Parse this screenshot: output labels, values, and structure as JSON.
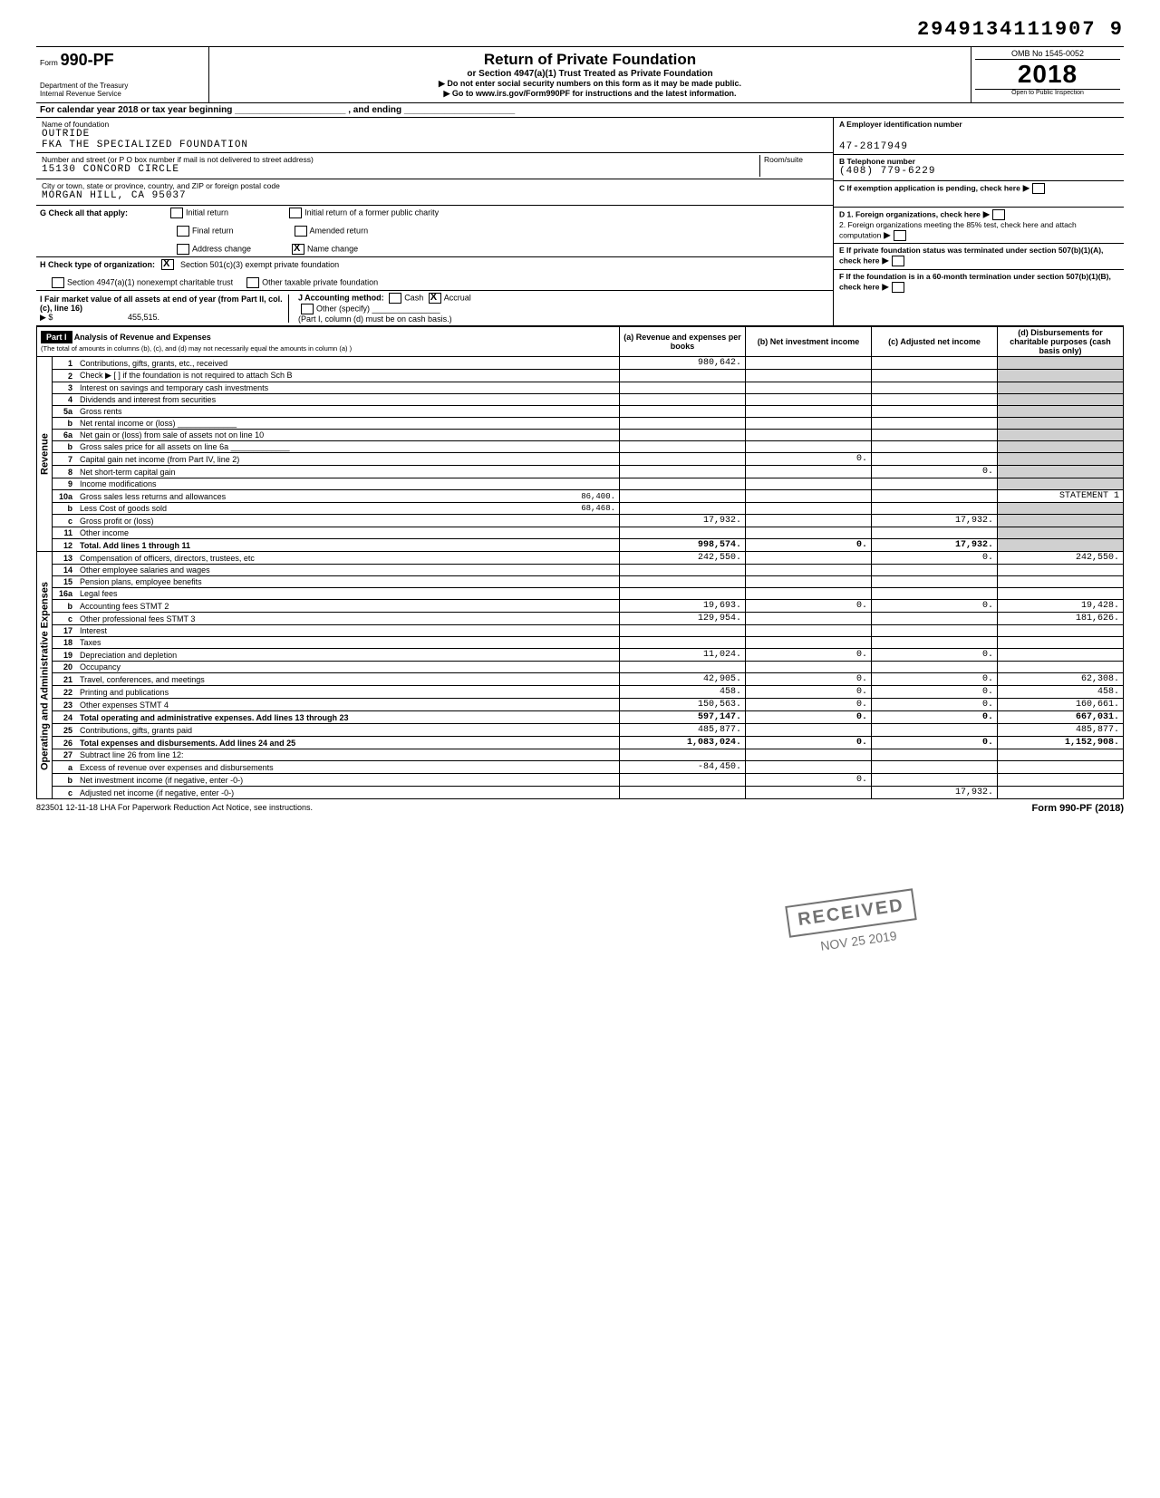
{
  "top_code": "2949134111907 9",
  "form": {
    "number_prefix": "Form",
    "number": "990-PF",
    "dept_line1": "Department of the Treasury",
    "dept_line2": "Internal Revenue Service",
    "title": "Return of Private Foundation",
    "subtitle1": "or Section 4947(a)(1) Trust Treated as Private Foundation",
    "subtitle2_a": "▶ Do not enter social security numbers on this form as it may be made public.",
    "subtitle2_b": "▶ Go to www.irs.gov/Form990PF for instructions and the latest information.",
    "omb": "OMB No 1545-0052",
    "year": "2018",
    "inspection": "Open to Public Inspection"
  },
  "period_line": "For calendar year 2018 or tax year beginning ______________________ , and ending ______________________",
  "foundation": {
    "name_label": "Name of foundation",
    "name_line1": "OUTRIDE",
    "name_line2": "FKA THE SPECIALIZED FOUNDATION",
    "addr_label": "Number and street (or P O box number if mail is not delivered to street address)",
    "room_label": "Room/suite",
    "address": "15130 CONCORD CIRCLE",
    "city_label": "City or town, state or province, country, and ZIP or foreign postal code",
    "city": "MORGAN HILL, CA  95037"
  },
  "right_block": {
    "a_label": "A Employer identification number",
    "ein": "47-2817949",
    "b_label": "B  Telephone number",
    "phone": "(408) 779-6229",
    "c_label": "C  If exemption application is pending, check here",
    "d1_label": "D  1. Foreign organizations, check here",
    "d2_label": "2. Foreign organizations meeting the 85% test, check here and attach computation",
    "e_label": "E  If private foundation status was terminated under section 507(b)(1)(A), check here",
    "f_label": "F  If the foundation is in a 60-month termination under section 507(b)(1)(B), check here"
  },
  "g_row": {
    "label": "G  Check all that apply:",
    "opts": [
      "Initial return",
      "Final return",
      "Address change",
      "Initial return of a former public charity",
      "Amended return",
      "Name change"
    ],
    "name_change_checked": true
  },
  "h_row": {
    "label": "H  Check type of organization:",
    "opt1": "Section 501(c)(3) exempt private foundation",
    "opt1_checked": true,
    "opt2": "Section 4947(a)(1) nonexempt charitable trust",
    "opt3": "Other taxable private foundation"
  },
  "i_row": {
    "label": "I  Fair market value of all assets at end of year (from Part II, col. (c), line 16)",
    "arrow": "▶ $",
    "value": "455,515.",
    "j_label": "J  Accounting method:",
    "cash": "Cash",
    "accrual": "Accrual",
    "accrual_checked": true,
    "other": "Other (specify) _______________",
    "note": "(Part I, column (d) must be on cash basis.)"
  },
  "part1_header": {
    "part": "Part I",
    "title": "Analysis of Revenue and Expenses",
    "note": "(The total of amounts in columns (b), (c), and (d) may not necessarily equal the amounts in column (a) )",
    "col_a": "(a) Revenue and expenses per books",
    "col_b": "(b) Net investment income",
    "col_c": "(c) Adjusted net income",
    "col_d": "(d) Disbursements for charitable purposes (cash basis only)"
  },
  "side_labels": {
    "revenue": "Revenue",
    "expenses": "Operating and Administrative Expenses"
  },
  "rows": [
    {
      "n": "1",
      "d": "Contributions, gifts, grants, etc., received",
      "a": "980,642."
    },
    {
      "n": "2",
      "d": "Check ▶ [ ] if the foundation is not required to attach Sch B"
    },
    {
      "n": "3",
      "d": "Interest on savings and temporary cash investments"
    },
    {
      "n": "4",
      "d": "Dividends and interest from securities"
    },
    {
      "n": "5a",
      "d": "Gross rents"
    },
    {
      "n": "b",
      "d": "Net rental income or (loss) _____________"
    },
    {
      "n": "6a",
      "d": "Net gain or (loss) from sale of assets not on line 10"
    },
    {
      "n": "b",
      "d": "Gross sales price for all assets on line 6a _____________"
    },
    {
      "n": "7",
      "d": "Capital gain net income (from Part IV, line 2)",
      "b": "0."
    },
    {
      "n": "8",
      "d": "Net short-term capital gain",
      "c": "0."
    },
    {
      "n": "9",
      "d": "Income modifications"
    },
    {
      "n": "10a",
      "d": "Gross sales less returns and allowances",
      "extra": "86,400.",
      "dcol": "STATEMENT 1"
    },
    {
      "n": "b",
      "d": "Less Cost of goods sold",
      "extra": "68,468."
    },
    {
      "n": "c",
      "d": "Gross profit or (loss)",
      "a": "17,932.",
      "c": "17,932."
    },
    {
      "n": "11",
      "d": "Other income"
    },
    {
      "n": "12",
      "d": "Total. Add lines 1 through 11",
      "a": "998,574.",
      "b": "0.",
      "c": "17,932.",
      "total": true
    },
    {
      "n": "13",
      "d": "Compensation of officers, directors, trustees, etc",
      "a": "242,550.",
      "c": "0.",
      "dcol": "242,550."
    },
    {
      "n": "14",
      "d": "Other employee salaries and wages"
    },
    {
      "n": "15",
      "d": "Pension plans, employee benefits"
    },
    {
      "n": "16a",
      "d": "Legal fees"
    },
    {
      "n": "b",
      "d": "Accounting fees                    STMT 2",
      "a": "19,693.",
      "b": "0.",
      "c": "0.",
      "dcol": "19,428."
    },
    {
      "n": "c",
      "d": "Other professional fees            STMT 3",
      "a": "129,954.",
      "dcol": "181,626."
    },
    {
      "n": "17",
      "d": "Interest"
    },
    {
      "n": "18",
      "d": "Taxes"
    },
    {
      "n": "19",
      "d": "Depreciation and depletion",
      "a": "11,024.",
      "b": "0.",
      "c": "0."
    },
    {
      "n": "20",
      "d": "Occupancy"
    },
    {
      "n": "21",
      "d": "Travel, conferences, and meetings",
      "a": "42,905.",
      "b": "0.",
      "c": "0.",
      "dcol": "62,308."
    },
    {
      "n": "22",
      "d": "Printing and publications",
      "a": "458.",
      "b": "0.",
      "c": "0.",
      "dcol": "458."
    },
    {
      "n": "23",
      "d": "Other expenses                     STMT 4",
      "a": "150,563.",
      "b": "0.",
      "c": "0.",
      "dcol": "160,661."
    },
    {
      "n": "24",
      "d": "Total operating and administrative expenses. Add lines 13 through 23",
      "a": "597,147.",
      "b": "0.",
      "c": "0.",
      "dcol": "667,031.",
      "total": true
    },
    {
      "n": "25",
      "d": "Contributions, gifts, grants paid",
      "a": "485,877.",
      "dcol": "485,877."
    },
    {
      "n": "26",
      "d": "Total expenses and disbursements. Add lines 24 and 25",
      "a": "1,083,024.",
      "b": "0.",
      "c": "0.",
      "dcol": "1,152,908.",
      "total": true
    },
    {
      "n": "27",
      "d": "Subtract line 26 from line 12:"
    },
    {
      "n": "a",
      "d": "Excess of revenue over expenses and disbursements",
      "a": "-84,450."
    },
    {
      "n": "b",
      "d": "Net investment income (if negative, enter -0-)",
      "b": "0."
    },
    {
      "n": "c",
      "d": "Adjusted net income (if negative, enter -0-)",
      "c": "17,932."
    }
  ],
  "stamp": "RECEIVED",
  "stamp_date": "NOV 25 2019",
  "footer": {
    "left": "823501  12-11-18    LHA  For Paperwork Reduction Act Notice, see instructions.",
    "right": "Form 990-PF (2018)"
  }
}
